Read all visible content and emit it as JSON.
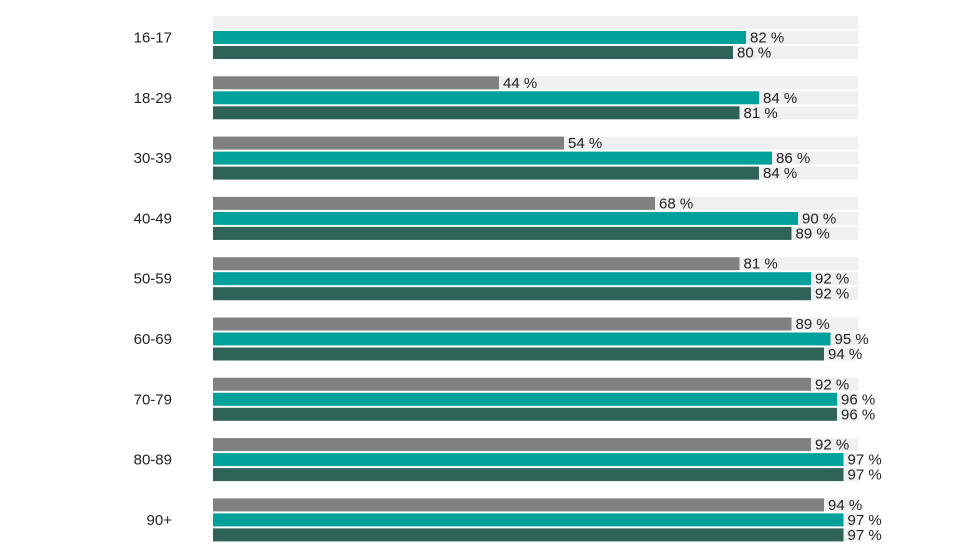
{
  "chart_data": {
    "type": "bar",
    "orientation": "horizontal",
    "categories": [
      "16-17",
      "18-29",
      "30-39",
      "40-49",
      "50-59",
      "60-69",
      "70-79",
      "80-89",
      "90+"
    ],
    "series": [
      {
        "color": "#808080",
        "values": [
          null,
          44,
          54,
          68,
          81,
          89,
          92,
          92,
          94
        ],
        "labels": [
          "",
          "44 %",
          "54 %",
          "68 %",
          "81 %",
          "89 %",
          "92 %",
          "92 %",
          "94 %"
        ]
      },
      {
        "color": "#00A19A",
        "values": [
          82,
          84,
          86,
          90,
          92,
          95,
          96,
          97,
          97
        ],
        "labels": [
          "82 %",
          "84 %",
          "86 %",
          "90 %",
          "92 %",
          "95 %",
          "96 %",
          "97 %",
          "97 %"
        ]
      },
      {
        "color": "#2F6358",
        "values": [
          80,
          81,
          84,
          89,
          92,
          94,
          96,
          97,
          97
        ],
        "labels": [
          "80 %",
          "81 %",
          "84 %",
          "89 %",
          "92 %",
          "94 %",
          "96 %",
          "97 %",
          "97 %"
        ]
      }
    ],
    "xlim": [
      0,
      100
    ],
    "background_bar_color": "#F0F0F0",
    "legend": "none",
    "grid": false
  }
}
